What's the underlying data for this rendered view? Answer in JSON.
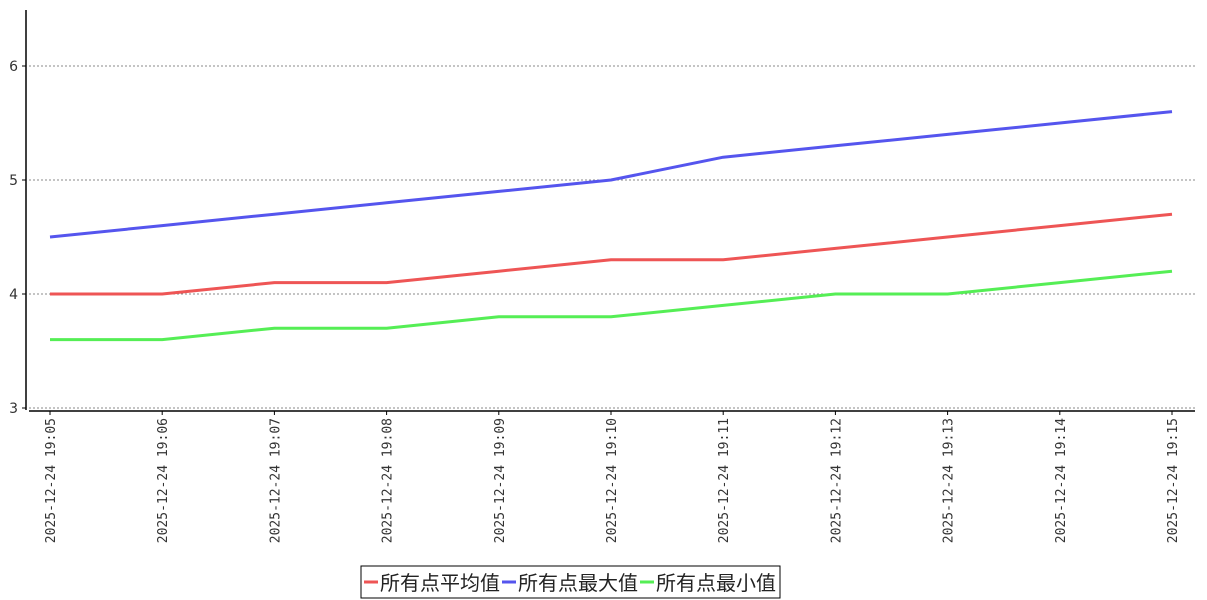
{
  "chart_data": {
    "type": "line",
    "title": "",
    "xlabel": "",
    "ylabel": "",
    "x": [
      "2025-12-24 19:05",
      "2025-12-24 19:06",
      "2025-12-24 19:07",
      "2025-12-24 19:08",
      "2025-12-24 19:09",
      "2025-12-24 19:10",
      "2025-12-24 19:11",
      "2025-12-24 19:12",
      "2025-12-24 19:13",
      "2025-12-24 19:14",
      "2025-12-24 19:15"
    ],
    "ylim": [
      3,
      6.5
    ],
    "yticks": [
      3,
      4,
      5,
      6
    ],
    "grid": "horizontal dashed",
    "legend_placement": "bottom-center",
    "series": [
      {
        "name": "所有点平均值",
        "color": "#ee5555",
        "values": [
          4.0,
          4.0,
          4.1,
          4.1,
          4.2,
          4.3,
          4.3,
          4.4,
          4.5,
          4.6,
          4.7
        ]
      },
      {
        "name": "所有点最大值",
        "color": "#5555ee",
        "values": [
          4.5,
          4.6,
          4.7,
          4.8,
          4.9,
          5.0,
          5.2,
          5.3,
          5.4,
          5.5,
          5.6
        ]
      },
      {
        "name": "所有点最小值",
        "color": "#55ee55",
        "values": [
          3.6,
          3.6,
          3.7,
          3.7,
          3.8,
          3.8,
          3.9,
          4.0,
          4.0,
          4.1,
          4.2
        ]
      }
    ]
  }
}
